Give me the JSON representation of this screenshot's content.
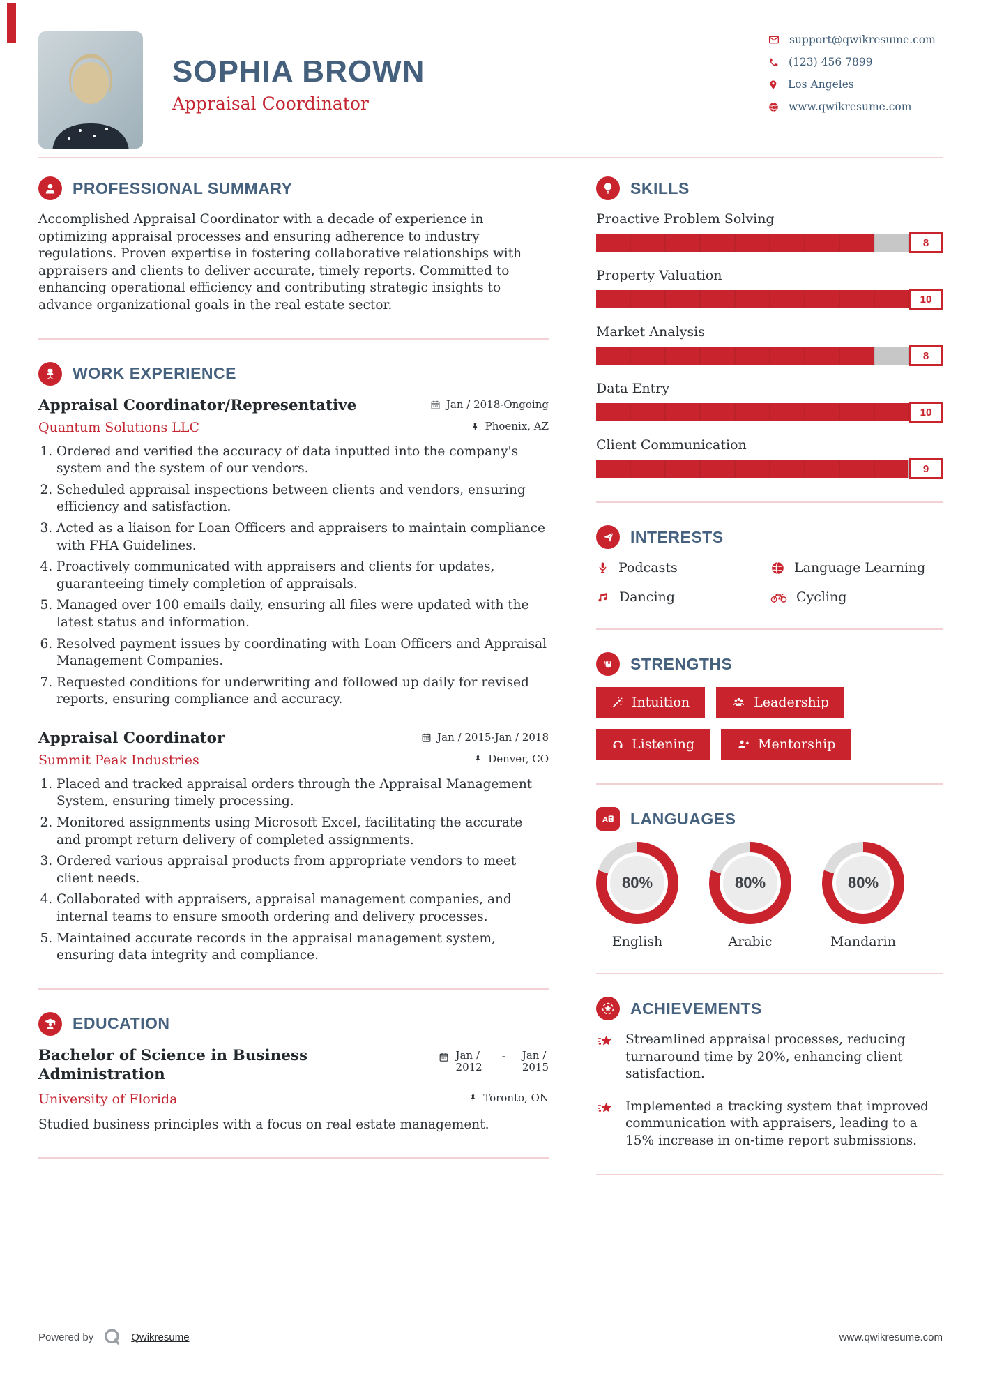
{
  "colors": {
    "accent": "#c9242d",
    "heading": "#45617e",
    "name_blue": "#44607c",
    "divider_pink": "#f2d0d4",
    "bar_track_gray": "#c7c7c7"
  },
  "header": {
    "name": "SOPHIA BROWN",
    "title": "Appraisal Coordinator",
    "contact": [
      {
        "icon": "email-icon",
        "text": "support@qwikresume.com"
      },
      {
        "icon": "phone-icon",
        "text": "(123) 456 7899"
      },
      {
        "icon": "location-icon",
        "text": "Los Angeles"
      },
      {
        "icon": "globe-icon",
        "text": "www.qwikresume.com"
      }
    ]
  },
  "summary": {
    "title": "PROFESSIONAL SUMMARY",
    "text": "Accomplished Appraisal Coordinator with a decade of experience in optimizing appraisal processes and ensuring adherence to industry regulations. Proven expertise in fostering collaborative relationships with appraisers and clients to deliver accurate, timely reports. Committed to enhancing operational efficiency and contributing strategic insights to advance organizational goals in the real estate sector."
  },
  "work": {
    "title": "WORK EXPERIENCE",
    "jobs": [
      {
        "role": "Appraisal Coordinator/Representative",
        "company": "Quantum Solutions LLC",
        "dates": "Jan / 2018-Ongoing",
        "location": "Phoenix, AZ",
        "bullets": [
          "Ordered and verified the accuracy of data inputted into the company's system and the system of our vendors.",
          "Scheduled appraisal inspections between clients and vendors, ensuring efficiency and satisfaction.",
          "Acted as a liaison for Loan Officers and appraisers to maintain compliance with FHA Guidelines.",
          "Proactively communicated with appraisers and clients for updates, guaranteeing timely completion of appraisals.",
          "Managed over 100 emails daily, ensuring all files were updated with the latest status and information.",
          "Resolved payment issues by coordinating with Loan Officers and Appraisal Management Companies.",
          "Requested conditions for underwriting and followed up daily for revised reports, ensuring compliance and accuracy."
        ]
      },
      {
        "role": "Appraisal Coordinator",
        "company": "Summit Peak Industries",
        "dates": "Jan / 2015-Jan / 2018",
        "location": "Denver, CO",
        "bullets": [
          "Placed and tracked appraisal orders through the Appraisal Management System, ensuring timely processing.",
          "Monitored assignments using Microsoft Excel, facilitating the accurate and prompt return delivery of completed assignments.",
          "Ordered various appraisal products from appropriate vendors to meet client needs.",
          "Collaborated with appraisers, appraisal management companies, and internal teams to ensure smooth ordering and delivery processes.",
          "Maintained accurate records in the appraisal management system, ensuring data integrity and compliance."
        ]
      }
    ]
  },
  "education": {
    "title": "EDUCATION",
    "degree": "Bachelor of Science in Business Administration",
    "school": "University of Florida",
    "dates": {
      "start_top": "Jan /",
      "start_bottom": "2012",
      "separator": "-",
      "end_top": "Jan /",
      "end_bottom": "2015"
    },
    "location": "Toronto, ON",
    "description": "Studied business principles with a focus on real estate management."
  },
  "skills": {
    "title": "SKILLS",
    "items": [
      {
        "name": "Proactive Problem Solving",
        "score": "8",
        "percent": 80
      },
      {
        "name": "Property Valuation",
        "score": "10",
        "percent": 100
      },
      {
        "name": "Market Analysis",
        "score": "8",
        "percent": 80
      },
      {
        "name": "Data Entry",
        "score": "10",
        "percent": 100
      },
      {
        "name": "Client Communication",
        "score": "9",
        "percent": 90
      }
    ]
  },
  "interests": {
    "title": "INTERESTS",
    "items": [
      {
        "icon": "microphone-icon",
        "label": "Podcasts"
      },
      {
        "icon": "globe-icon",
        "label": "Language Learning"
      },
      {
        "icon": "music-note-icon",
        "label": "Dancing"
      },
      {
        "icon": "bicycle-icon",
        "label": "Cycling"
      }
    ]
  },
  "strengths": {
    "title": "STRENGTHS",
    "items": [
      {
        "icon": "magic-wand-icon",
        "label": "Intuition"
      },
      {
        "icon": "users-icon",
        "label": "Leadership"
      },
      {
        "icon": "headphones-icon",
        "label": "Listening"
      },
      {
        "icon": "user-plus-icon",
        "label": "Mentorship"
      }
    ]
  },
  "languages": {
    "title": "LANGUAGES",
    "items": [
      {
        "name": "English",
        "percent": "80%"
      },
      {
        "name": "Arabic",
        "percent": "80%"
      },
      {
        "name": "Mandarin",
        "percent": "80%"
      }
    ]
  },
  "achievements": {
    "title": "ACHIEVEMENTS",
    "items": [
      "Streamlined appraisal processes, reducing turnaround time by 20%, enhancing client satisfaction.",
      "Implemented a tracking system that improved communication with appraisers, leading to a 15% increase in on-time report submissions."
    ]
  },
  "footer": {
    "powered_by": "Powered by",
    "brand": "Qwikresume",
    "website": "www.qwikresume.com"
  }
}
